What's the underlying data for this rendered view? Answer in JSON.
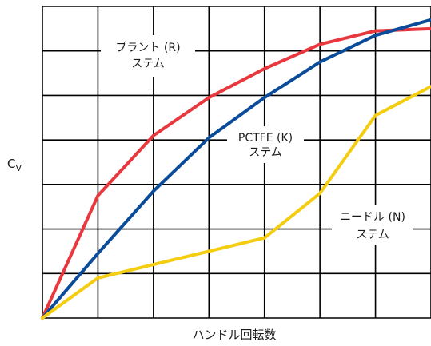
{
  "chart_data": {
    "type": "line",
    "title": "",
    "xlabel": "ハンドル回転数",
    "ylabel": "C",
    "ylabel_subscript": "V",
    "xlim": [
      0,
      7
    ],
    "ylim": [
      0,
      7
    ],
    "grid": true,
    "series": [
      {
        "color": "#e8383e",
        "x": [
          0,
          1,
          2,
          3,
          4,
          5,
          6,
          7
        ],
        "y": [
          0,
          2.75,
          4.1,
          4.95,
          5.6,
          6.15,
          6.45,
          6.5
        ]
      },
      {
        "color": "#0a4b9a",
        "x": [
          0,
          1,
          2,
          3,
          4,
          5,
          6,
          7
        ],
        "y": [
          0,
          1.45,
          2.85,
          4.05,
          4.95,
          5.75,
          6.35,
          6.7
        ]
      },
      {
        "color": "#f5cd10",
        "x": [
          0,
          1,
          2,
          3,
          4,
          5,
          6,
          7
        ],
        "y": [
          0,
          0.9,
          1.2,
          1.5,
          1.8,
          2.8,
          4.55,
          5.2
        ]
      }
    ],
    "annotations": [
      {
        "line1": "ブラント (R)",
        "line2": "ステム"
      },
      {
        "line1": "PCTFE (K)",
        "line2": "ステム"
      },
      {
        "line1": "ニードル (N)",
        "line2": "ステム"
      }
    ]
  }
}
